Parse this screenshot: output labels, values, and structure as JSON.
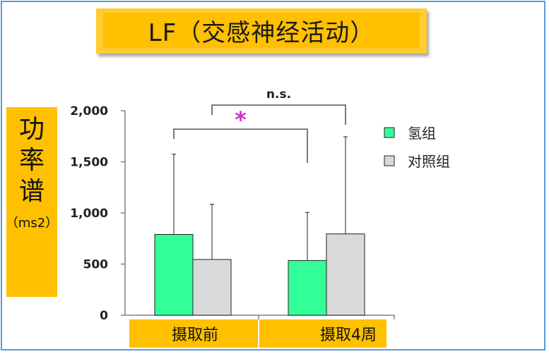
{
  "title": "LF（交感神经活动）",
  "ylabel": {
    "chars": [
      "功",
      "率",
      "谱"
    ],
    "unit": "（ms2）"
  },
  "colors": {
    "hydrogen": "#33ff99",
    "control": "#d9d9d9",
    "accent": "#ffc000",
    "star": "#cc33cc"
  },
  "chart_data": {
    "type": "bar",
    "categories": [
      "摄取前",
      "摄取4周"
    ],
    "series": [
      {
        "name": "氢组",
        "values": [
          790,
          535
        ],
        "error": [
          785,
          470
        ],
        "color": "#33ff99"
      },
      {
        "name": "对照组",
        "values": [
          545,
          795
        ],
        "error": [
          540,
          950
        ],
        "color": "#d9d9d9"
      }
    ],
    "ylim": [
      0,
      2000
    ],
    "yticks": [
      0,
      500,
      1000,
      1500,
      2000
    ],
    "ytick_labels": [
      "0",
      "500",
      "1,000",
      "1,500",
      "2,000"
    ],
    "legend": {
      "position": "right"
    },
    "annotations": [
      {
        "label": "*",
        "pair": [
          [
            "摄取前",
            "氢组"
          ],
          [
            "摄取4周",
            "氢组"
          ]
        ],
        "level": 1820
      },
      {
        "label": "n.s.",
        "pair": [
          [
            "摄取前",
            "对照组"
          ],
          [
            "摄取4周",
            "对照组"
          ]
        ],
        "level": 2000
      }
    ]
  }
}
